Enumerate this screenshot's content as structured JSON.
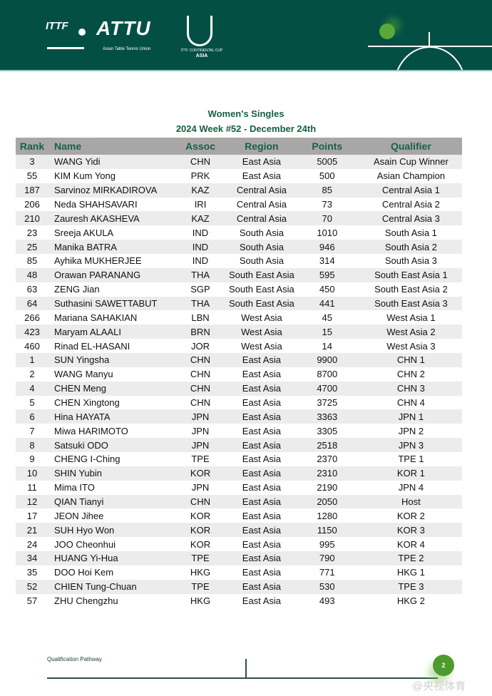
{
  "header": {
    "logos": {
      "ittf": "ITTF",
      "attu": "ATTU",
      "attu_subtitle": "Asian Table Tennis Union",
      "cup_subtitle": "ITTF CONTINENTAL CUP",
      "cup_region": "ASIA"
    },
    "brand_color": "#034f43",
    "accent_color": "#5aa83a"
  },
  "document": {
    "title": "Women's Singles",
    "subtitle": "2024 Week #52 - December 24th"
  },
  "table": {
    "columns": [
      "Rank",
      "Name",
      "Assoc",
      "Region",
      "Points",
      "Qualifier"
    ],
    "rows": [
      [
        "3",
        "WANG Yidi",
        "CHN",
        "East Asia",
        "5005",
        "Asain Cup Winner"
      ],
      [
        "55",
        "KIM Kum Yong",
        "PRK",
        "East Asia",
        "500",
        "Asian Champion"
      ],
      [
        "187",
        "Sarvinoz MIRKADIROVA",
        "KAZ",
        "Central Asia",
        "85",
        "Central Asia 1"
      ],
      [
        "206",
        "Neda SHAHSAVARI",
        "IRI",
        "Central Asia",
        "73",
        "Central Asia 2"
      ],
      [
        "210",
        "Zauresh AKASHEVA",
        "KAZ",
        "Central Asia",
        "70",
        "Central Asia 3"
      ],
      [
        "23",
        "Sreeja AKULA",
        "IND",
        "South Asia",
        "1010",
        "South Asia 1"
      ],
      [
        "25",
        "Manika BATRA",
        "IND",
        "South Asia",
        "946",
        "South Asia 2"
      ],
      [
        "85",
        "Ayhika MUKHERJEE",
        "IND",
        "South Asia",
        "314",
        "South Asia 3"
      ],
      [
        "48",
        "Orawan PARANANG",
        "THA",
        "South East Asia",
        "595",
        "South East Asia 1"
      ],
      [
        "63",
        "ZENG Jian",
        "SGP",
        "South East Asia",
        "450",
        "South East Asia 2"
      ],
      [
        "64",
        "Suthasini SAWETTABUT",
        "THA",
        "South East Asia",
        "441",
        "South East Asia 3"
      ],
      [
        "266",
        "Mariana SAHAKIAN",
        "LBN",
        "West Asia",
        "45",
        "West Asia 1"
      ],
      [
        "423",
        "Maryam ALAALI",
        "BRN",
        "West Asia",
        "15",
        "West Asia 2"
      ],
      [
        "460",
        "Rinad EL-HASANI",
        "JOR",
        "West Asia",
        "14",
        "West Asia 3"
      ],
      [
        "1",
        "SUN Yingsha",
        "CHN",
        "East Asia",
        "9900",
        "CHN 1"
      ],
      [
        "2",
        "WANG Manyu",
        "CHN",
        "East Asia",
        "8700",
        "CHN 2"
      ],
      [
        "4",
        "CHEN Meng",
        "CHN",
        "East Asia",
        "4700",
        "CHN 3"
      ],
      [
        "5",
        "CHEN Xingtong",
        "CHN",
        "East Asia",
        "3725",
        "CHN 4"
      ],
      [
        "6",
        "Hina HAYATA",
        "JPN",
        "East Asia",
        "3363",
        "JPN 1"
      ],
      [
        "7",
        "Miwa HARIMOTO",
        "JPN",
        "East Asia",
        "3305",
        "JPN 2"
      ],
      [
        "8",
        "Satsuki ODO",
        "JPN",
        "East Asia",
        "2518",
        "JPN 3"
      ],
      [
        "9",
        "CHENG I-Ching",
        "TPE",
        "East Asia",
        "2370",
        "TPE 1"
      ],
      [
        "10",
        "SHIN Yubin",
        "KOR",
        "East Asia",
        "2310",
        "KOR 1"
      ],
      [
        "11",
        "Mima ITO",
        "JPN",
        "East Asia",
        "2190",
        "JPN 4"
      ],
      [
        "12",
        "QIAN Tianyi",
        "CHN",
        "East Asia",
        "2050",
        "Host"
      ],
      [
        "17",
        "JEON Jihee",
        "KOR",
        "East Asia",
        "1280",
        "KOR 2"
      ],
      [
        "21",
        "SUH Hyo Won",
        "KOR",
        "East Asia",
        "1150",
        "KOR 3"
      ],
      [
        "24",
        "JOO Cheonhui",
        "KOR",
        "East Asia",
        "995",
        "KOR 4"
      ],
      [
        "34",
        "HUANG Yi-Hua",
        "TPE",
        "East Asia",
        "790",
        "TPE 2"
      ],
      [
        "35",
        "DOO Hoi Kem",
        "HKG",
        "East Asia",
        "771",
        "HKG 1"
      ],
      [
        "52",
        "CHIEN Tung-Chuan",
        "TPE",
        "East Asia",
        "530",
        "TPE 3"
      ],
      [
        "57",
        "ZHU Chengzhu",
        "HKG",
        "East Asia",
        "493",
        "HKG 2"
      ]
    ]
  },
  "footer": {
    "section": "Qualification Pathway",
    "page_number": "2",
    "watermark": "@央视体育"
  }
}
